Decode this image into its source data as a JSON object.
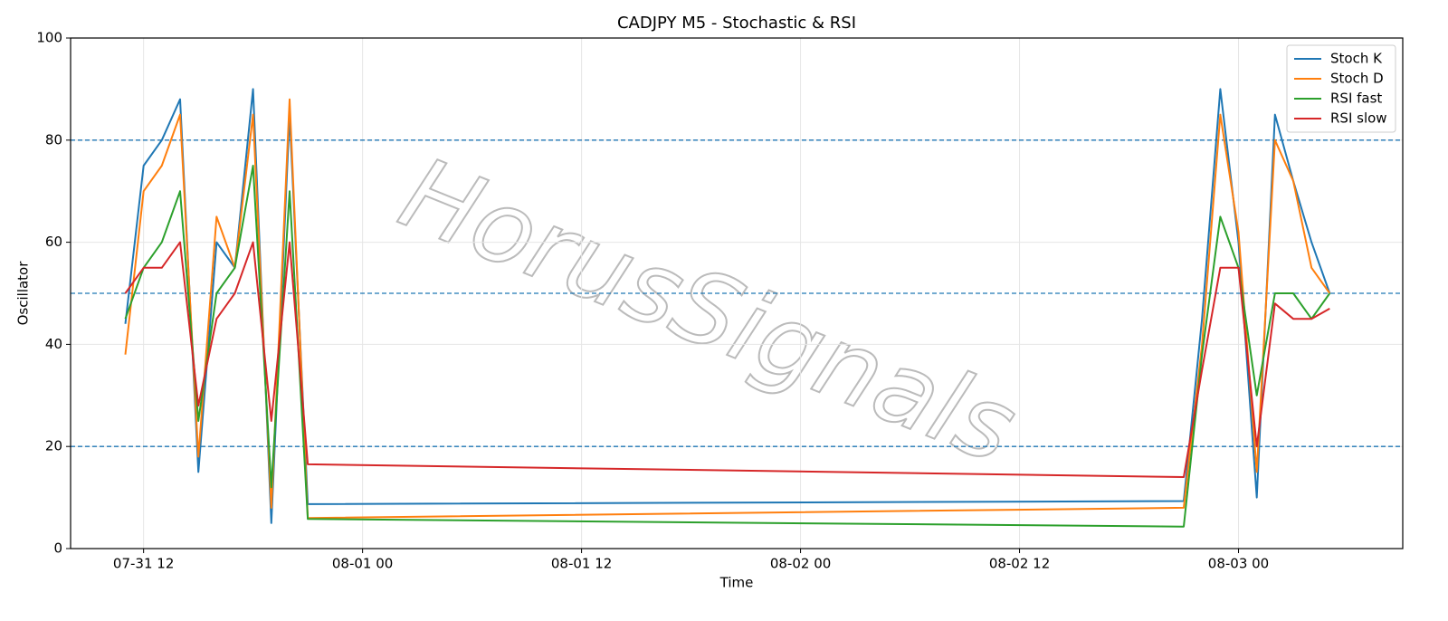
{
  "chart_data": {
    "type": "line",
    "title": "CADJPY M5 - Stochastic & RSI",
    "x_label": "Time",
    "y_label": "Oscillator",
    "watermark": "HorusSignals",
    "x": [
      "07-31 11",
      "07-31 12",
      "07-31 13",
      "07-31 14",
      "07-31 15",
      "07-31 16",
      "07-31 17",
      "07-31 18",
      "07-31 19",
      "07-31 20",
      "07-31 21",
      "08-02 21",
      "08-02 22",
      "08-02 23",
      "08-03 00",
      "08-03 01",
      "08-03 02",
      "08-03 03",
      "08-03 04",
      "08-03 05"
    ],
    "series": [
      {
        "name": "Stoch K",
        "color": "#1f77b4",
        "values": [
          44,
          75,
          80,
          88,
          15,
          60,
          55,
          90,
          5,
          85,
          8.7,
          9.3,
          45,
          90,
          60,
          10,
          85,
          72,
          60,
          50
        ]
      },
      {
        "name": "Stoch D",
        "color": "#ff7f0e",
        "values": [
          38,
          70,
          75,
          85,
          18,
          65,
          55,
          85,
          8,
          88,
          6,
          8,
          40,
          85,
          62,
          15,
          80,
          72,
          55,
          50
        ]
      },
      {
        "name": "RSI fast",
        "color": "#2ca02c",
        "values": [
          45,
          55,
          60,
          70,
          25,
          50,
          55,
          75,
          12,
          70,
          5.8,
          4.3,
          38,
          65,
          55,
          30,
          50,
          50,
          45,
          50
        ]
      },
      {
        "name": "RSI slow",
        "color": "#d62728",
        "values": [
          50,
          55,
          55,
          60,
          28,
          45,
          50,
          60,
          25,
          60,
          16.5,
          14,
          35,
          55,
          55,
          20,
          48,
          45,
          45,
          47
        ]
      }
    ],
    "xlim": [
      "07-31 08",
      "08-03 09"
    ],
    "xticks": [
      "07-31 12",
      "08-01 00",
      "08-01 12",
      "08-02 00",
      "08-02 12",
      "08-03 00"
    ],
    "ylim": [
      0,
      100
    ],
    "yticks": [
      0,
      20,
      40,
      60,
      80,
      100
    ],
    "hlines": [
      20,
      50,
      80
    ],
    "hline_color": "#1f77b4",
    "grid": true,
    "legend": "upper-right"
  }
}
